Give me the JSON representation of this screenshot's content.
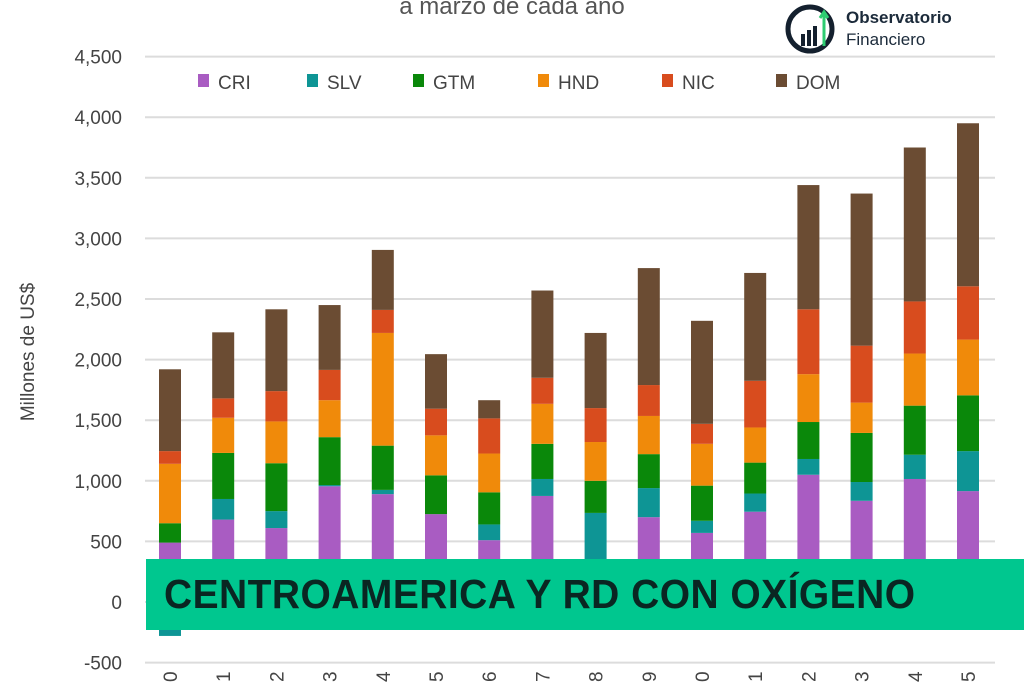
{
  "chart_data": {
    "type": "bar",
    "stacked": true,
    "title": "a marzo de cada año",
    "ylabel": "Millones de US$",
    "xlabel": "",
    "ylim": [
      -500,
      4500
    ],
    "yticks": [
      -500,
      0,
      500,
      1000,
      1500,
      2000,
      2500,
      3000,
      3500,
      4000,
      4500
    ],
    "ytick_labels": [
      "-500",
      "0",
      "500",
      "1,000",
      "1,500",
      "2,000",
      "2,500",
      "3,000",
      "3,500",
      "4,000",
      "4,500"
    ],
    "categories": [
      "0",
      "1",
      "2",
      "3",
      "4",
      "5",
      "6",
      "7",
      "8",
      "9",
      "0",
      "1",
      "2",
      "3",
      "4",
      "5"
    ],
    "grid": true,
    "legend_position": "top",
    "series": [
      {
        "name": "CRI",
        "color": "#a95cc2",
        "values": [
          490,
          680,
          610,
          955,
          890,
          725,
          510,
          875,
          0,
          700,
          570,
          745,
          1050,
          835,
          1015,
          915
        ]
      },
      {
        "name": "SLV",
        "color": "#0e9595",
        "values": [
          -280,
          170,
          140,
          10,
          35,
          0,
          130,
          140,
          735,
          240,
          100,
          150,
          130,
          155,
          200,
          330
        ]
      },
      {
        "name": "GTM",
        "color": "#0a880a",
        "values": [
          160,
          380,
          395,
          395,
          365,
          320,
          265,
          290,
          265,
          280,
          290,
          255,
          305,
          405,
          405,
          460
        ]
      },
      {
        "name": "HND",
        "color": "#f08a0a",
        "values": [
          490,
          290,
          345,
          305,
          930,
          330,
          320,
          330,
          320,
          315,
          345,
          290,
          395,
          250,
          430,
          460
        ]
      },
      {
        "name": "NIC",
        "color": "#d84c1e",
        "values": [
          105,
          160,
          250,
          250,
          190,
          220,
          290,
          215,
          280,
          255,
          165,
          385,
          535,
          470,
          430,
          440
        ]
      },
      {
        "name": "DOM",
        "color": "#6b4c33",
        "values": [
          675,
          545,
          675,
          535,
          495,
          450,
          150,
          720,
          620,
          965,
          850,
          890,
          1025,
          1255,
          1270,
          1345
        ]
      }
    ]
  },
  "logo": {
    "line1": "Observatorio",
    "line2": "Financiero"
  },
  "banner": {
    "text": "CENTROAMERICA Y RD CON OXÍGENO",
    "color": "#00c78f"
  }
}
